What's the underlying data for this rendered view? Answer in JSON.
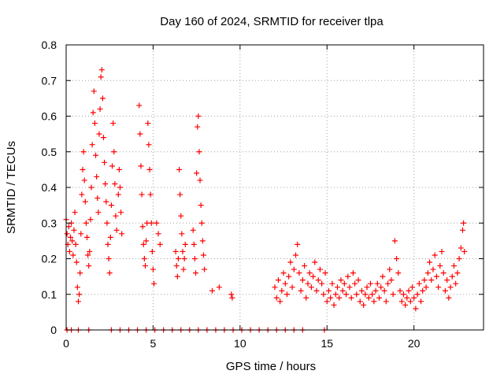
{
  "chart_data": {
    "type": "scatter",
    "title": "Day 160 of 2024, SRMTID for receiver tlpa",
    "xlabel": "GPS time / hours",
    "ylabel": "SRMTID / TECUs",
    "xlim": [
      0,
      24
    ],
    "ylim": [
      0,
      0.8
    ],
    "xticks": [
      0,
      5,
      10,
      15,
      20
    ],
    "xtick_labels": [
      "0",
      "5",
      "10",
      "15",
      "20"
    ],
    "yticks": [
      0,
      0.1,
      0.2,
      0.3,
      0.4,
      0.5,
      0.6,
      0.7,
      0.8
    ],
    "ytick_labels": [
      "0",
      "0.1",
      "0.2",
      "0.3",
      "0.4",
      "0.5",
      "0.6",
      "0.7",
      "0.8"
    ],
    "grid": true,
    "marker": "plus",
    "color": "#ff0000",
    "series": [
      {
        "name": "SRMTID",
        "points": [
          [
            0.0,
            0.31
          ],
          [
            0.05,
            0.27
          ],
          [
            0.1,
            0.24
          ],
          [
            0.15,
            0.29
          ],
          [
            0.2,
            0.22
          ],
          [
            0.25,
            0.26
          ],
          [
            0.3,
            0.3
          ],
          [
            0.35,
            0.25
          ],
          [
            0.4,
            0.21
          ],
          [
            0.45,
            0.28
          ],
          [
            0.5,
            0.33
          ],
          [
            0.55,
            0.24
          ],
          [
            0.6,
            0.19
          ],
          [
            0.65,
            0.12
          ],
          [
            0.7,
            0.08
          ],
          [
            0.75,
            0.1
          ],
          [
            0.8,
            0.16
          ],
          [
            0.85,
            0.27
          ],
          [
            0.9,
            0.38
          ],
          [
            0.95,
            0.45
          ],
          [
            1.0,
            0.5
          ],
          [
            1.05,
            0.42
          ],
          [
            1.1,
            0.36
          ],
          [
            1.15,
            0.3
          ],
          [
            1.2,
            0.26
          ],
          [
            1.25,
            0.21
          ],
          [
            1.3,
            0.18
          ],
          [
            1.35,
            0.22
          ],
          [
            1.4,
            0.31
          ],
          [
            1.45,
            0.4
          ],
          [
            1.5,
            0.52
          ],
          [
            1.55,
            0.61
          ],
          [
            1.6,
            0.67
          ],
          [
            1.65,
            0.58
          ],
          [
            1.7,
            0.49
          ],
          [
            1.75,
            0.43
          ],
          [
            1.8,
            0.37
          ],
          [
            1.85,
            0.33
          ],
          [
            1.9,
            0.55
          ],
          [
            1.95,
            0.62
          ],
          [
            2.0,
            0.71
          ],
          [
            2.05,
            0.73
          ],
          [
            2.1,
            0.65
          ],
          [
            2.15,
            0.54
          ],
          [
            2.2,
            0.47
          ],
          [
            2.25,
            0.41
          ],
          [
            2.3,
            0.36
          ],
          [
            2.35,
            0.3
          ],
          [
            2.4,
            0.24
          ],
          [
            2.45,
            0.2
          ],
          [
            2.5,
            0.16
          ],
          [
            2.55,
            0.26
          ],
          [
            2.6,
            0.35
          ],
          [
            2.65,
            0.46
          ],
          [
            2.7,
            0.58
          ],
          [
            2.75,
            0.5
          ],
          [
            2.8,
            0.41
          ],
          [
            2.85,
            0.32
          ],
          [
            2.9,
            0.28
          ],
          [
            3.0,
            0.38
          ],
          [
            3.05,
            0.45
          ],
          [
            3.1,
            0.4
          ],
          [
            3.15,
            0.33
          ],
          [
            3.2,
            0.27
          ],
          [
            4.2,
            0.63
          ],
          [
            4.25,
            0.55
          ],
          [
            4.3,
            0.46
          ],
          [
            4.35,
            0.38
          ],
          [
            4.4,
            0.29
          ],
          [
            4.45,
            0.24
          ],
          [
            4.5,
            0.2
          ],
          [
            4.55,
            0.18
          ],
          [
            4.6,
            0.25
          ],
          [
            4.65,
            0.3
          ],
          [
            4.7,
            0.58
          ],
          [
            4.75,
            0.52
          ],
          [
            4.8,
            0.45
          ],
          [
            4.85,
            0.38
          ],
          [
            4.9,
            0.3
          ],
          [
            4.95,
            0.22
          ],
          [
            5.0,
            0.17
          ],
          [
            5.05,
            0.13
          ],
          [
            5.2,
            0.3
          ],
          [
            5.3,
            0.27
          ],
          [
            5.4,
            0.24
          ],
          [
            6.3,
            0.22
          ],
          [
            6.35,
            0.18
          ],
          [
            6.4,
            0.15
          ],
          [
            6.45,
            0.2
          ],
          [
            6.5,
            0.45
          ],
          [
            6.55,
            0.38
          ],
          [
            6.6,
            0.32
          ],
          [
            6.65,
            0.27
          ],
          [
            6.7,
            0.22
          ],
          [
            6.75,
            0.17
          ],
          [
            6.8,
            0.2
          ],
          [
            6.85,
            0.24
          ],
          [
            7.3,
            0.28
          ],
          [
            7.35,
            0.24
          ],
          [
            7.4,
            0.2
          ],
          [
            7.45,
            0.16
          ],
          [
            7.5,
            0.44
          ],
          [
            7.55,
            0.57
          ],
          [
            7.6,
            0.6
          ],
          [
            7.65,
            0.5
          ],
          [
            7.7,
            0.42
          ],
          [
            7.75,
            0.35
          ],
          [
            7.8,
            0.3
          ],
          [
            7.85,
            0.25
          ],
          [
            7.9,
            0.21
          ],
          [
            7.95,
            0.17
          ],
          [
            8.4,
            0.11
          ],
          [
            8.8,
            0.12
          ],
          [
            9.5,
            0.1
          ],
          [
            9.55,
            0.09
          ],
          [
            12.0,
            0.12
          ],
          [
            12.1,
            0.09
          ],
          [
            12.2,
            0.14
          ],
          [
            12.3,
            0.08
          ],
          [
            12.4,
            0.11
          ],
          [
            12.5,
            0.16
          ],
          [
            12.6,
            0.13
          ],
          [
            12.7,
            0.1
          ],
          [
            12.8,
            0.15
          ],
          [
            12.9,
            0.19
          ],
          [
            13.0,
            0.12
          ],
          [
            13.1,
            0.17
          ],
          [
            13.2,
            0.21
          ],
          [
            13.3,
            0.24
          ],
          [
            13.4,
            0.16
          ],
          [
            13.5,
            0.11
          ],
          [
            13.6,
            0.14
          ],
          [
            13.7,
            0.18
          ],
          [
            13.8,
            0.09
          ],
          [
            13.9,
            0.13
          ],
          [
            14.0,
            0.16
          ],
          [
            14.1,
            0.12
          ],
          [
            14.2,
            0.15
          ],
          [
            14.3,
            0.19
          ],
          [
            14.4,
            0.11
          ],
          [
            14.5,
            0.14
          ],
          [
            14.6,
            0.17
          ],
          [
            14.7,
            0.13
          ],
          [
            14.8,
            0.1
          ],
          [
            14.9,
            0.16
          ],
          [
            15.0,
            0.08
          ],
          [
            15.1,
            0.11
          ],
          [
            15.2,
            0.09
          ],
          [
            15.3,
            0.13
          ],
          [
            15.4,
            0.07
          ],
          [
            15.5,
            0.1
          ],
          [
            15.6,
            0.12
          ],
          [
            15.7,
            0.09
          ],
          [
            15.8,
            0.14
          ],
          [
            15.9,
            0.11
          ],
          [
            16.0,
            0.13
          ],
          [
            16.1,
            0.1
          ],
          [
            16.2,
            0.15
          ],
          [
            16.3,
            0.12
          ],
          [
            16.4,
            0.09
          ],
          [
            16.5,
            0.16
          ],
          [
            16.6,
            0.13
          ],
          [
            16.7,
            0.1
          ],
          [
            16.8,
            0.14
          ],
          [
            16.9,
            0.08
          ],
          [
            17.0,
            0.11
          ],
          [
            17.1,
            0.07
          ],
          [
            17.2,
            0.1
          ],
          [
            17.3,
            0.12
          ],
          [
            17.4,
            0.09
          ],
          [
            17.5,
            0.13
          ],
          [
            17.6,
            0.1
          ],
          [
            17.7,
            0.08
          ],
          [
            17.8,
            0.11
          ],
          [
            17.9,
            0.13
          ],
          [
            18.0,
            0.09
          ],
          [
            18.1,
            0.12
          ],
          [
            18.2,
            0.15
          ],
          [
            18.3,
            0.11
          ],
          [
            18.4,
            0.08
          ],
          [
            18.5,
            0.13
          ],
          [
            18.6,
            0.17
          ],
          [
            18.7,
            0.14
          ],
          [
            18.8,
            0.1
          ],
          [
            18.9,
            0.25
          ],
          [
            19.0,
            0.2
          ],
          [
            19.1,
            0.16
          ],
          [
            19.2,
            0.11
          ],
          [
            19.3,
            0.08
          ],
          [
            19.4,
            0.1
          ],
          [
            19.5,
            0.07
          ],
          [
            19.6,
            0.09
          ],
          [
            19.7,
            0.11
          ],
          [
            19.8,
            0.08
          ],
          [
            19.9,
            0.12
          ],
          [
            20.0,
            0.09
          ],
          [
            20.1,
            0.06
          ],
          [
            20.2,
            0.1
          ],
          [
            20.3,
            0.13
          ],
          [
            20.4,
            0.08
          ],
          [
            20.5,
            0.11
          ],
          [
            20.6,
            0.14
          ],
          [
            20.7,
            0.12
          ],
          [
            20.8,
            0.16
          ],
          [
            20.9,
            0.19
          ],
          [
            21.0,
            0.14
          ],
          [
            21.1,
            0.17
          ],
          [
            21.2,
            0.21
          ],
          [
            21.3,
            0.15
          ],
          [
            21.4,
            0.12
          ],
          [
            21.5,
            0.18
          ],
          [
            21.6,
            0.22
          ],
          [
            21.7,
            0.16
          ],
          [
            21.8,
            0.11
          ],
          [
            21.9,
            0.14
          ],
          [
            22.0,
            0.09
          ],
          [
            22.1,
            0.12
          ],
          [
            22.2,
            0.15
          ],
          [
            22.3,
            0.18
          ],
          [
            22.4,
            0.13
          ],
          [
            22.5,
            0.16
          ],
          [
            22.6,
            0.2
          ],
          [
            22.7,
            0.23
          ],
          [
            22.8,
            0.28
          ],
          [
            22.85,
            0.3
          ],
          [
            22.9,
            0.22
          ],
          [
            0.05,
            0.0
          ],
          [
            0.3,
            0.0
          ],
          [
            0.7,
            0.0
          ],
          [
            1.3,
            0.0
          ],
          [
            2.6,
            0.0
          ],
          [
            3.1,
            0.0
          ],
          [
            3.6,
            0.0
          ],
          [
            4.1,
            0.0
          ],
          [
            4.6,
            0.0
          ],
          [
            5.1,
            0.0
          ],
          [
            5.6,
            0.0
          ],
          [
            6.1,
            0.0
          ],
          [
            6.6,
            0.0
          ],
          [
            7.1,
            0.0
          ],
          [
            7.6,
            0.0
          ],
          [
            8.1,
            0.0
          ],
          [
            8.6,
            0.0
          ],
          [
            9.1,
            0.0
          ],
          [
            9.6,
            0.0
          ],
          [
            10.1,
            0.0
          ],
          [
            10.6,
            0.0
          ],
          [
            11.1,
            0.0
          ],
          [
            11.6,
            0.0
          ],
          [
            12.1,
            0.0
          ],
          [
            12.6,
            0.0
          ],
          [
            13.1,
            0.0
          ],
          [
            13.6,
            0.0
          ],
          [
            14.85,
            0.0
          ]
        ]
      }
    ]
  }
}
